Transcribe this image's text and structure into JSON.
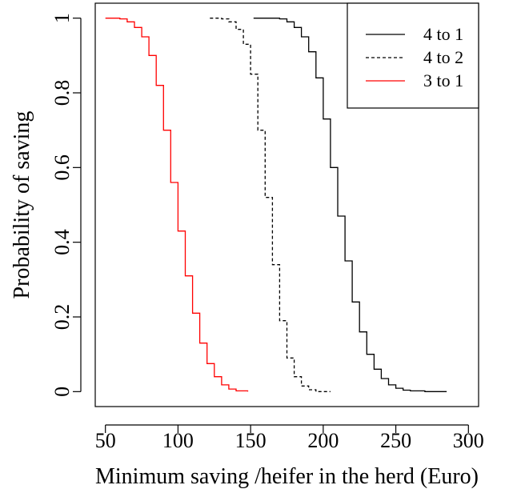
{
  "chart_data": {
    "type": "line",
    "title": "",
    "xlabel": "Minimum saving /heifer in the herd (Euro)",
    "ylabel": "Probability of saving",
    "xlim": [
      43,
      307
    ],
    "ylim": [
      -0.04,
      1.04
    ],
    "x_ticks": [
      50,
      100,
      150,
      200,
      250,
      300
    ],
    "x_tick_labels": [
      "50",
      "100",
      "150",
      "200",
      "250",
      "300"
    ],
    "y_ticks": [
      0,
      0.2,
      0.4,
      0.6,
      0.8,
      1
    ],
    "y_tick_labels": [
      "0",
      "0.2",
      "0.4",
      "0.6",
      "0.8",
      "1"
    ],
    "grid": false,
    "legend_position": "top-right",
    "series": [
      {
        "name": "4 to 1",
        "color": "#000000",
        "dash": "solid",
        "x": [
          152,
          160,
          170,
          175,
          180,
          185,
          190,
          195,
          200,
          205,
          210,
          215,
          220,
          225,
          230,
          235,
          240,
          245,
          250,
          255,
          260,
          270,
          285
        ],
        "y": [
          1.0,
          1.0,
          0.998,
          0.99,
          0.975,
          0.95,
          0.91,
          0.84,
          0.73,
          0.6,
          0.47,
          0.35,
          0.24,
          0.16,
          0.1,
          0.06,
          0.035,
          0.018,
          0.009,
          0.004,
          0.002,
          0.0,
          0.0
        ]
      },
      {
        "name": "4 to 2",
        "color": "#000000",
        "dash": "dashed",
        "x": [
          122,
          130,
          135,
          140,
          145,
          150,
          155,
          160,
          165,
          170,
          175,
          180,
          185,
          190,
          195,
          205
        ],
        "y": [
          1.0,
          0.998,
          0.99,
          0.97,
          0.93,
          0.85,
          0.7,
          0.52,
          0.34,
          0.19,
          0.09,
          0.04,
          0.015,
          0.005,
          0.0,
          0.0
        ]
      },
      {
        "name": "3 to 1",
        "color": "#ff0000",
        "dash": "solid",
        "x": [
          50,
          60,
          65,
          70,
          75,
          80,
          85,
          90,
          95,
          100,
          105,
          110,
          115,
          120,
          125,
          130,
          135,
          140,
          148
        ],
        "y": [
          1.0,
          0.998,
          0.99,
          0.975,
          0.95,
          0.9,
          0.82,
          0.7,
          0.56,
          0.43,
          0.31,
          0.21,
          0.13,
          0.075,
          0.04,
          0.018,
          0.007,
          0.002,
          0.0
        ]
      }
    ]
  }
}
